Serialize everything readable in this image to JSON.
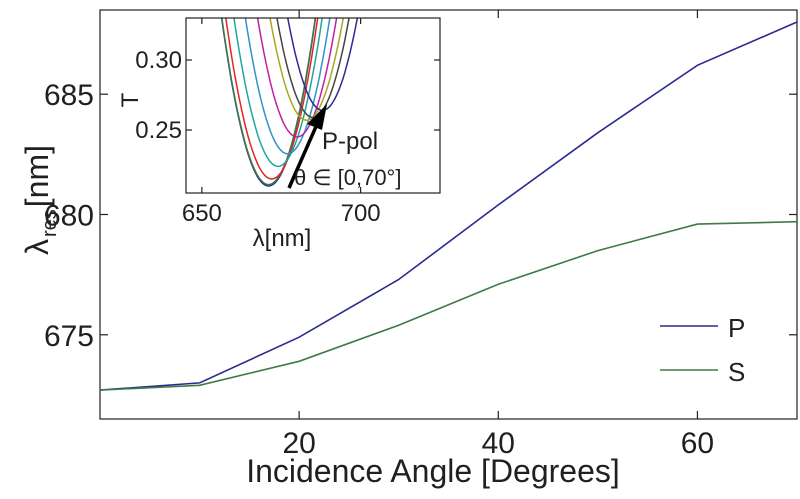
{
  "chart_data": [
    {
      "type": "line",
      "xlabel": "Incidence Angle [Degrees]",
      "ylabel": {
        "symbol": "λ",
        "subscript": "res",
        "unit": "[nm]"
      },
      "xlim": [
        0,
        70
      ],
      "ylim": [
        671.5,
        688.5
      ],
      "xticks": [
        20,
        40,
        60
      ],
      "yticks": [
        675,
        680,
        685
      ],
      "grid": false,
      "legend": "bottom-right",
      "series": [
        {
          "name": "P",
          "color": "#2b2a8f",
          "x": [
            0,
            10,
            20,
            30,
            40,
            50,
            60,
            70
          ],
          "y": [
            672.7,
            673.0,
            674.9,
            677.3,
            680.4,
            683.4,
            686.2,
            688.0
          ]
        },
        {
          "name": "S",
          "color": "#3f7a46",
          "x": [
            0,
            10,
            20,
            30,
            40,
            50,
            60,
            70
          ],
          "y": [
            672.7,
            672.9,
            673.9,
            675.4,
            677.1,
            678.5,
            679.6,
            679.7
          ]
        }
      ]
    },
    {
      "type": "line",
      "xlabel": "λ[nm]",
      "ylabel": "T",
      "xlim": [
        645,
        725
      ],
      "ylim": [
        0.205,
        0.33
      ],
      "xticks": [
        650,
        700
      ],
      "yticks": [
        0.25,
        0.3
      ],
      "ytick_labels": [
        "0.25",
        "0.30"
      ],
      "grid": false,
      "annotation": {
        "polarization": "P-pol",
        "theta_range": "θ ∈ [0,70°]"
      },
      "series": [
        {
          "color": "#2b2a8f",
          "min_x": 671,
          "min_y": 0.21
        },
        {
          "color": "#3f7a46",
          "min_x": 671,
          "min_y": 0.211
        },
        {
          "color": "#e02626",
          "min_x": 672,
          "min_y": 0.215
        },
        {
          "color": "#1fa6a0",
          "min_x": 674,
          "min_y": 0.224
        },
        {
          "color": "#2f93c9",
          "min_x": 677,
          "min_y": 0.233
        },
        {
          "color": "#c21fa2",
          "min_x": 680,
          "min_y": 0.245
        },
        {
          "color": "#a8a81c",
          "min_x": 683,
          "min_y": 0.257
        },
        {
          "color": "#444444",
          "min_x": 685,
          "min_y": 0.259
        },
        {
          "color": "#2b2a8f",
          "min_x": 688,
          "min_y": 0.264
        }
      ]
    }
  ]
}
